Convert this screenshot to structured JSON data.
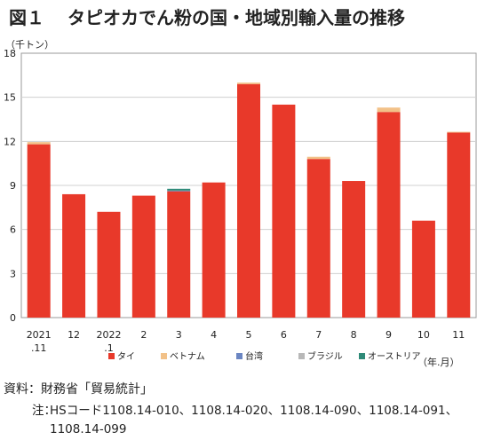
{
  "header": {
    "title_prefix": "図１",
    "title_text": "タピオカでん粉の国・地域別輸入量の推移"
  },
  "source_line": "資料：財務省「貿易統計」",
  "note": {
    "label": "注：",
    "text": "HSコード1108.14-010、1108.14-020、1108.14-090、1108.14-091、1108.14-099"
  },
  "chart_data": {
    "type": "bar",
    "stacked": true,
    "ylabel": "（千トン）",
    "xunit": "（年.月）",
    "ylim": [
      0,
      18
    ],
    "yticks": [
      "0",
      "3",
      "6",
      "9",
      "12",
      "15",
      "18"
    ],
    "categories": [
      [
        "2021",
        ".11"
      ],
      [
        "12"
      ],
      [
        "2022",
        ".1"
      ],
      [
        "2"
      ],
      [
        "3"
      ],
      [
        "4"
      ],
      [
        "5"
      ],
      [
        "6"
      ],
      [
        "7"
      ],
      [
        "8"
      ],
      [
        "9"
      ],
      [
        "10"
      ],
      [
        "11"
      ]
    ],
    "series": [
      {
        "name": "タイ",
        "color": "#e8392a",
        "values": [
          11.8,
          8.4,
          7.2,
          8.3,
          8.6,
          9.2,
          15.9,
          14.5,
          10.8,
          9.3,
          14.0,
          6.6,
          12.6
        ]
      },
      {
        "name": "ベトナム",
        "color": "#f2c188",
        "values": [
          0.15,
          0.0,
          0.0,
          0.0,
          0.0,
          0.0,
          0.1,
          0.0,
          0.15,
          0.0,
          0.3,
          0.0,
          0.05
        ]
      },
      {
        "name": "台湾",
        "color": "#6b86c2",
        "values": [
          0,
          0,
          0,
          0,
          0.05,
          0,
          0,
          0,
          0,
          0,
          0,
          0,
          0
        ]
      },
      {
        "name": "ブラジル",
        "color": "#b8b8b8",
        "values": [
          0,
          0,
          0,
          0,
          0,
          0,
          0,
          0,
          0,
          0,
          0,
          0,
          0
        ]
      },
      {
        "name": "オーストリア",
        "color": "#2e8a78",
        "values": [
          0,
          0,
          0,
          0,
          0.12,
          0,
          0,
          0,
          0,
          0,
          0,
          0,
          0
        ]
      }
    ],
    "grid": true,
    "legend_position": "bottom"
  }
}
